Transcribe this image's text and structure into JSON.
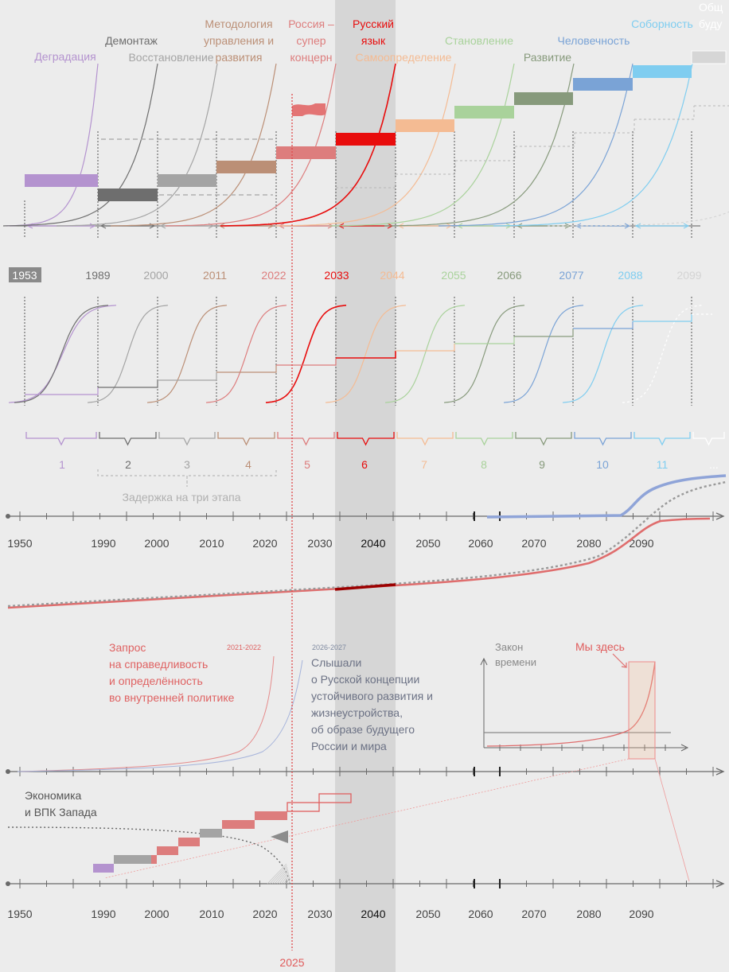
{
  "colors": {
    "background": "#ececec",
    "highlight_band": "#d6d6d6",
    "axis": "#6a6a6a",
    "marker_line": "#e0494b",
    "upper_curve": "#8fa4d8",
    "lower_curve": "#df6d6d",
    "dotted_curve": "#9a9a9a",
    "stage": [
      "#b493cf",
      "#6e6e6e",
      "#a4a4a4",
      "#bb8f76",
      "#dd7d7d",
      "#e80c0c",
      "#f4bb93",
      "#a9d29b",
      "#879a7c",
      "#7aa3d6",
      "#7fcdf0",
      "#d4d4d4"
    ]
  },
  "top": {
    "stage_titles": [
      {
        "lines": [
          "Деградация"
        ]
      },
      {
        "lines": [
          "Демонтаж"
        ]
      },
      {
        "lines": [
          "Восстановление"
        ]
      },
      {
        "lines": [
          "Методология",
          "управления и",
          "развития"
        ]
      },
      {
        "lines": [
          "Россия –",
          "супер",
          "концерн"
        ]
      },
      {
        "lines": [
          "Русский",
          "язык"
        ]
      },
      {
        "lines": [
          "Самоопределение"
        ]
      },
      {
        "lines": [
          "Становление"
        ]
      },
      {
        "lines": [
          "Развитие"
        ]
      },
      {
        "lines": [
          "Человечность"
        ]
      },
      {
        "lines": [
          "Соборность"
        ]
      },
      {
        "lines": [
          "Общ",
          "буду"
        ]
      }
    ],
    "years": [
      "1953",
      "1989",
      "2000",
      "2011",
      "2022",
      "2033",
      "2044",
      "2055",
      "2066",
      "2077",
      "2088",
      "2099"
    ]
  },
  "middle": {
    "stage_numbers": [
      "1",
      "2",
      "3",
      "4",
      "5",
      "6",
      "7",
      "8",
      "9",
      "10",
      "11",
      "..."
    ],
    "delay_label": "Задержка на три этапа"
  },
  "timeline": {
    "labels": [
      "1950",
      "1990",
      "2000",
      "2010",
      "2020",
      "2030",
      "2040",
      "2050",
      "2060",
      "2070",
      "2080",
      "2090"
    ],
    "highlight_label": "2040"
  },
  "lower": {
    "demand_text": [
      "Запрос",
      "на справедливость",
      "и определённость",
      "во внутренней политике"
    ],
    "demand_years": "2021-2022",
    "heard_years": "2026-2027",
    "heard_text": [
      "Слышали",
      "о Русской концепции",
      "устойчивого развития и",
      "жизнеустройства,",
      "об образе будущего",
      "России и мира"
    ],
    "law_label": [
      "Закон",
      "времени"
    ],
    "we_are_here": "Мы здесь",
    "west_label": [
      "Экономика",
      "и ВПК Запада"
    ],
    "marker_year": "2025"
  }
}
